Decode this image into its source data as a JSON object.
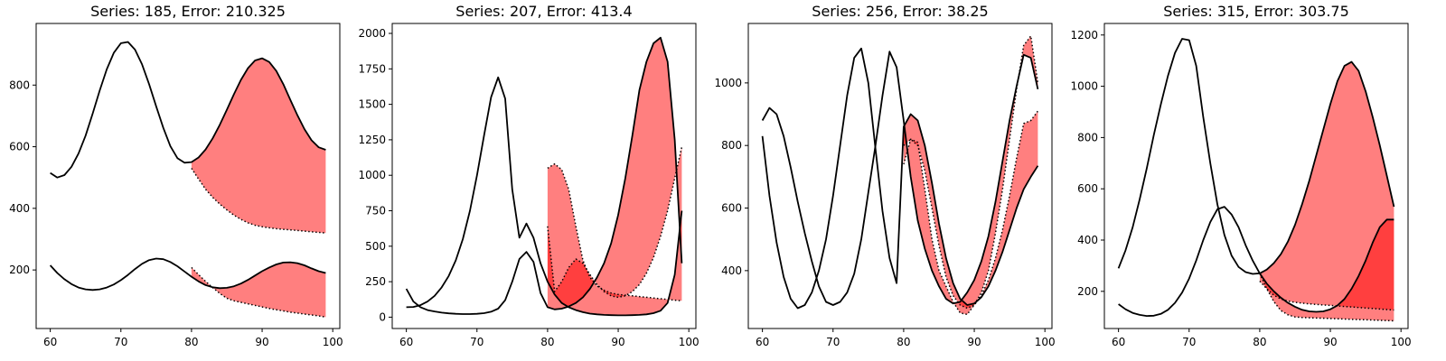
{
  "chart_data": [
    {
      "type": "line",
      "title": "Series: 185, Error: 210.325",
      "xlim": [
        58,
        101
      ],
      "ylim": [
        10,
        1000
      ],
      "xticks": [
        60,
        70,
        80,
        90,
        100
      ],
      "yticks": [
        200,
        400,
        600,
        800
      ],
      "fill_color": "#ff0000",
      "series": [
        {
          "role": "actual",
          "x": [
            60,
            61,
            62,
            63,
            64,
            65,
            66,
            67,
            68,
            69,
            70,
            71,
            72,
            73,
            74,
            75,
            76,
            77,
            78,
            79,
            80,
            81,
            82,
            83,
            84,
            85,
            86,
            87,
            88,
            89,
            90,
            91,
            92,
            93,
            94,
            95,
            96,
            97,
            98,
            99
          ],
          "y": [
            515,
            500,
            508,
            535,
            578,
            636,
            707,
            782,
            851,
            905,
            936,
            940,
            915,
            867,
            803,
            731,
            661,
            602,
            563,
            548,
            550,
            565,
            591,
            627,
            671,
            720,
            770,
            817,
            855,
            880,
            887,
            875,
            846,
            803,
            752,
            702,
            657,
            621,
            598,
            590
          ]
        },
        {
          "role": "actual",
          "x": [
            60,
            61,
            62,
            63,
            64,
            65,
            66,
            67,
            68,
            69,
            70,
            71,
            72,
            73,
            74,
            75,
            76,
            77,
            78,
            79,
            80,
            81,
            82,
            83,
            84,
            85,
            86,
            87,
            88,
            89,
            90,
            91,
            92,
            93,
            94,
            95,
            96,
            97,
            98,
            99
          ],
          "y": [
            215,
            190,
            170,
            154,
            143,
            137,
            135,
            137,
            143,
            153,
            167,
            184,
            203,
            220,
            232,
            237,
            235,
            226,
            212,
            195,
            178,
            163,
            151,
            144,
            141,
            142,
            147,
            156,
            168,
            182,
            196,
            208,
            218,
            224,
            225,
            222,
            215,
            205,
            196,
            190
          ]
        },
        {
          "role": "forecast",
          "x": [
            80,
            81,
            82,
            83,
            84,
            85,
            86,
            87,
            88,
            89,
            90,
            91,
            92,
            93,
            94,
            95,
            96,
            97,
            98,
            99
          ],
          "y": [
            530,
            495,
            462,
            436,
            414,
            395,
            378,
            364,
            353,
            345,
            340,
            337,
            334,
            332,
            330,
            328,
            326,
            324,
            322,
            320
          ]
        },
        {
          "role": "forecast",
          "x": [
            80,
            81,
            82,
            83,
            84,
            85,
            86,
            87,
            88,
            89,
            90,
            91,
            92,
            93,
            94,
            95,
            96,
            97,
            98,
            99
          ],
          "y": [
            208,
            185,
            163,
            143,
            124,
            108,
            100,
            95,
            90,
            85,
            80,
            75,
            71,
            67,
            63,
            60,
            57,
            54,
            51,
            47
          ]
        }
      ],
      "bands": [
        [
          0,
          2
        ],
        [
          1,
          3
        ]
      ]
    },
    {
      "type": "line",
      "title": "Series: 207, Error: 413.4",
      "xlim": [
        58,
        101
      ],
      "ylim": [
        -80,
        2070
      ],
      "xticks": [
        60,
        70,
        80,
        90,
        100
      ],
      "yticks": [
        0,
        250,
        500,
        750,
        1000,
        1250,
        1500,
        1750,
        2000
      ],
      "fill_color": "#ff0000",
      "series": [
        {
          "role": "actual",
          "x": [
            60,
            61,
            62,
            63,
            64,
            65,
            66,
            67,
            68,
            69,
            70,
            71,
            72,
            73,
            74,
            75,
            76,
            77,
            78,
            79,
            80,
            81,
            82,
            83,
            84,
            85,
            86,
            87,
            88,
            89,
            90,
            91,
            92,
            93,
            94,
            95,
            96,
            97,
            98,
            99
          ],
          "y": [
            70,
            72,
            85,
            110,
            150,
            210,
            290,
            400,
            550,
            750,
            1000,
            1280,
            1550,
            1690,
            1540,
            900,
            560,
            660,
            560,
            380,
            250,
            160,
            100,
            70,
            50,
            35,
            25,
            20,
            16,
            14,
            13,
            13,
            14,
            16,
            20,
            28,
            45,
            100,
            300,
            750
          ]
        },
        {
          "role": "actual",
          "x": [
            60,
            61,
            62,
            63,
            64,
            65,
            66,
            67,
            68,
            69,
            70,
            71,
            72,
            73,
            74,
            75,
            76,
            77,
            78,
            79,
            80,
            81,
            82,
            83,
            84,
            85,
            86,
            87,
            88,
            89,
            90,
            91,
            92,
            93,
            94,
            95,
            96,
            97,
            98,
            99
          ],
          "y": [
            200,
            110,
            70,
            50,
            40,
            32,
            27,
            24,
            22,
            22,
            24,
            28,
            38,
            60,
            120,
            250,
            410,
            460,
            390,
            170,
            70,
            55,
            60,
            75,
            100,
            140,
            200,
            280,
            380,
            520,
            720,
            980,
            1280,
            1600,
            1800,
            1930,
            1970,
            1800,
            1250,
            380
          ]
        },
        {
          "role": "forecast",
          "x": [
            80,
            81,
            82,
            83,
            84,
            85,
            86,
            87,
            88,
            89,
            90,
            91,
            92,
            93,
            94,
            95,
            96,
            97,
            98,
            99
          ],
          "y": [
            1050,
            1080,
            1040,
            900,
            640,
            400,
            280,
            220,
            190,
            170,
            160,
            155,
            150,
            145,
            140,
            135,
            130,
            125,
            120,
            115
          ]
        },
        {
          "role": "forecast",
          "x": [
            80,
            81,
            82,
            83,
            84,
            85,
            86,
            87,
            88,
            89,
            90,
            91,
            92,
            93,
            94,
            95,
            96,
            97,
            98,
            99
          ],
          "y": [
            640,
            180,
            250,
            350,
            410,
            380,
            300,
            230,
            180,
            150,
            140,
            150,
            180,
            230,
            310,
            420,
            570,
            750,
            980,
            1200
          ]
        }
      ],
      "bands": [
        [
          0,
          2
        ],
        [
          1,
          3
        ]
      ]
    },
    {
      "type": "line",
      "title": "Series: 256, Error: 38.25",
      "xlim": [
        58,
        101
      ],
      "ylim": [
        215,
        1190
      ],
      "xticks": [
        60,
        70,
        80,
        90,
        100
      ],
      "yticks": [
        400,
        600,
        800,
        1000
      ],
      "fill_color": "#ff0000",
      "series": [
        {
          "role": "actual",
          "x": [
            60,
            61,
            62,
            63,
            64,
            65,
            66,
            67,
            68,
            69,
            70,
            71,
            72,
            73,
            74,
            75,
            76,
            77,
            78,
            79,
            80,
            81,
            82,
            83,
            84,
            85,
            86,
            87,
            88,
            89,
            90,
            91,
            92,
            93,
            94,
            95,
            96,
            97,
            98,
            99
          ],
          "y": [
            880,
            920,
            900,
            830,
            730,
            620,
            520,
            430,
            350,
            300,
            290,
            300,
            330,
            390,
            500,
            650,
            800,
            960,
            1100,
            1050,
            880,
            700,
            560,
            470,
            400,
            350,
            310,
            295,
            300,
            330,
            370,
            430,
            510,
            620,
            750,
            880,
            990,
            1090,
            1080,
            980
          ]
        },
        {
          "role": "actual",
          "x": [
            60,
            61,
            62,
            63,
            64,
            65,
            66,
            67,
            68,
            69,
            70,
            71,
            72,
            73,
            74,
            75,
            76,
            77,
            78,
            79,
            80,
            81,
            82,
            83,
            84,
            85,
            86,
            87,
            88,
            89,
            90,
            91,
            92,
            93,
            94,
            95,
            96,
            97,
            98,
            99
          ],
          "y": [
            830,
            640,
            490,
            380,
            310,
            280,
            290,
            330,
            400,
            500,
            640,
            800,
            960,
            1080,
            1110,
            1000,
            790,
            590,
            440,
            360,
            860,
            900,
            880,
            800,
            680,
            550,
            440,
            360,
            310,
            290,
            295,
            315,
            350,
            400,
            460,
            530,
            600,
            660,
            700,
            735
          ]
        },
        {
          "role": "forecast",
          "x": [
            80,
            81,
            82,
            83,
            84,
            85,
            86,
            87,
            88,
            89,
            90,
            91,
            92,
            93,
            94,
            95,
            96,
            97,
            98,
            99
          ],
          "y": [
            800,
            820,
            800,
            720,
            600,
            480,
            380,
            320,
            290,
            280,
            290,
            320,
            370,
            440,
            530,
            640,
            760,
            870,
            880,
            910
          ]
        },
        {
          "role": "forecast",
          "x": [
            80,
            81,
            82,
            83,
            84,
            85,
            86,
            87,
            88,
            89,
            90,
            91,
            92,
            93,
            94,
            95,
            96,
            97,
            98,
            99
          ],
          "y": [
            740,
            820,
            810,
            660,
            500,
            400,
            350,
            300,
            265,
            260,
            290,
            330,
            400,
            520,
            660,
            820,
            980,
            1120,
            1150,
            1000
          ]
        }
      ],
      "bands": [
        [
          0,
          3
        ],
        [
          1,
          2
        ]
      ]
    },
    {
      "type": "line",
      "title": "Series: 315, Error: 303.75",
      "xlim": [
        58,
        101
      ],
      "ylim": [
        55,
        1245
      ],
      "xticks": [
        60,
        70,
        80,
        90,
        100
      ],
      "yticks": [
        200,
        400,
        600,
        800,
        1000,
        1200
      ],
      "fill_color": "#ff0000",
      "series": [
        {
          "role": "actual",
          "x": [
            60,
            61,
            62,
            63,
            64,
            65,
            66,
            67,
            68,
            69,
            70,
            71,
            72,
            73,
            74,
            75,
            76,
            77,
            78,
            79,
            80,
            81,
            82,
            83,
            84,
            85,
            86,
            87,
            88,
            89,
            90,
            91,
            92,
            93,
            94,
            95,
            96,
            97,
            98,
            99
          ],
          "y": [
            290,
            360,
            450,
            560,
            680,
            810,
            930,
            1040,
            1130,
            1185,
            1180,
            1080,
            880,
            700,
            540,
            420,
            340,
            295,
            275,
            268,
            270,
            285,
            310,
            345,
            395,
            460,
            540,
            630,
            730,
            830,
            930,
            1020,
            1080,
            1095,
            1060,
            980,
            880,
            770,
            650,
            530
          ]
        },
        {
          "role": "actual",
          "x": [
            60,
            61,
            62,
            63,
            64,
            65,
            66,
            67,
            68,
            69,
            70,
            71,
            72,
            73,
            74,
            75,
            76,
            77,
            78,
            79,
            80,
            81,
            82,
            83,
            84,
            85,
            86,
            87,
            88,
            89,
            90,
            91,
            92,
            93,
            94,
            95,
            96,
            97,
            98,
            99
          ],
          "y": [
            150,
            130,
            116,
            108,
            104,
            105,
            112,
            128,
            155,
            195,
            250,
            320,
            400,
            470,
            520,
            530,
            500,
            450,
            380,
            320,
            270,
            230,
            200,
            175,
            155,
            140,
            128,
            122,
            120,
            122,
            130,
            145,
            170,
            210,
            260,
            320,
            390,
            450,
            480,
            480
          ]
        },
        {
          "role": "forecast",
          "x": [
            80,
            81,
            82,
            83,
            84,
            85,
            86,
            87,
            88,
            89,
            90,
            91,
            92,
            93,
            94,
            95,
            96,
            97,
            98,
            99
          ],
          "y": [
            240,
            210,
            185,
            170,
            162,
            157,
            154,
            151,
            149,
            147,
            145,
            143,
            141,
            139,
            137,
            135,
            133,
            131,
            129,
            127
          ]
        },
        {
          "role": "forecast",
          "x": [
            80,
            81,
            82,
            83,
            84,
            85,
            86,
            87,
            88,
            89,
            90,
            91,
            92,
            93,
            94,
            95,
            96,
            97,
            98,
            99
          ],
          "y": [
            270,
            210,
            160,
            125,
            108,
            100,
            98,
            97,
            96,
            95,
            94,
            93,
            92,
            91,
            90,
            89,
            88,
            87,
            86,
            85
          ]
        }
      ],
      "bands": [
        [
          0,
          2
        ],
        [
          1,
          3
        ]
      ]
    }
  ]
}
